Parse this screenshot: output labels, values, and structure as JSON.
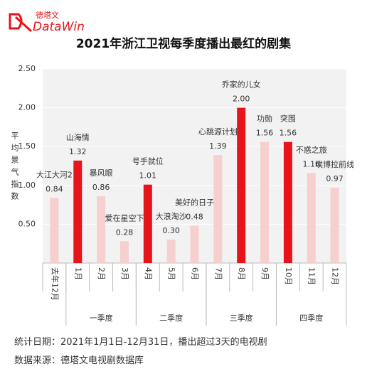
{
  "logo": {
    "cn": "德塔文",
    "en": "DataWin"
  },
  "chart_data": {
    "type": "bar",
    "title": "2021年浙江卫视每季度播出最红的剧集",
    "y_label": "平均景气指数",
    "categories": [
      "去年12月",
      "1月",
      "2月",
      "3月",
      "4月",
      "5月",
      "6月",
      "7月",
      "8月",
      "9月",
      "10月",
      "11月",
      "12月"
    ],
    "names": [
      "大江大河2",
      "山海情",
      "暴风眼",
      "爱在星空下",
      "号手就位",
      "大浪淘沙",
      "美好的日子",
      "心跳源计划",
      "乔家的儿女",
      "功勋",
      "突围",
      "不惑之旅",
      "埃博拉前线"
    ],
    "values": [
      0.84,
      1.32,
      0.86,
      0.28,
      1.01,
      0.3,
      0.48,
      1.39,
      2.0,
      1.56,
      1.56,
      1.16,
      0.97
    ],
    "value_labels": [
      "0.84",
      "1.32",
      "0.86",
      "0.28",
      "1.01",
      "0.30",
      "0.48",
      "1.39",
      "2.00",
      "1.56",
      "1.56",
      "1.16",
      "0.97"
    ],
    "colors": [
      "#f6cfcf",
      "#e8141b",
      "#f6cfcf",
      "#f6cfcf",
      "#e8141b",
      "#f6cfcf",
      "#f6cfcf",
      "#f6cfcf",
      "#e8141b",
      "#f6cfcf",
      "#e8141b",
      "#f6cfcf",
      "#f6cfcf"
    ],
    "groups": [
      {
        "label": "一季度",
        "span": [
          1,
          3
        ]
      },
      {
        "label": "二季度",
        "span": [
          4,
          6
        ]
      },
      {
        "label": "三季度",
        "span": [
          7,
          9
        ]
      },
      {
        "label": "四季度",
        "span": [
          10,
          12
        ]
      }
    ],
    "ylim": [
      0,
      2.5
    ],
    "yticks": [
      {
        "value": 0.5,
        "label": "0.50"
      },
      {
        "value": 1,
        "label": "1.00"
      },
      {
        "value": 1.5,
        "label": "1.50"
      },
      {
        "value": 2,
        "label": "2.00"
      },
      {
        "value": 2.5,
        "label": "2.50"
      }
    ],
    "grid": true
  },
  "footer": [
    "统计日期：2021年1月1日-12月31日，播出超过3天的电视剧",
    "数据来源：德塔文电视剧数据库"
  ]
}
